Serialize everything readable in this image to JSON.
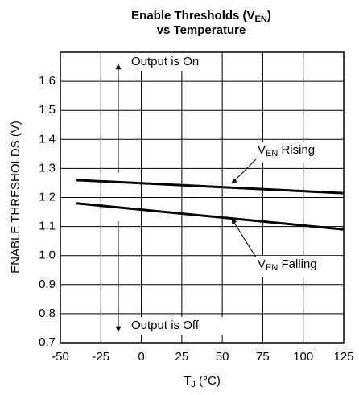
{
  "chart_data": {
    "type": "line",
    "title": {
      "main": "Enable Thresholds (V",
      "sub": "EN",
      "rest": ")"
    },
    "subtitle": "vs Temperature",
    "x_label": {
      "main": "T",
      "sub": "J",
      "rest": " (°C)"
    },
    "y_label": "ENABLE THRESHOLDS (V)",
    "x": [
      -40,
      125
    ],
    "series": [
      {
        "color": "#000000",
        "values": [
          1.26,
          1.215
        ]
      },
      {
        "color": "#000000",
        "values": [
          1.18,
          1.09
        ]
      }
    ],
    "xlim": [
      -50,
      125
    ],
    "xticks": [
      -50,
      -25,
      0,
      25,
      50,
      75,
      100,
      125
    ],
    "ylim": [
      0.7,
      1.7
    ],
    "yticks": [
      0.7,
      {
        "value": 0.8,
        "label": "0.8"
      },
      0.9,
      {
        "value": 1.0,
        "label": "1.0"
      },
      1.1,
      1.2,
      1.3,
      1.4,
      1.5,
      1.6
    ],
    "grid": true,
    "annotations": [
      {
        "text": "Output is On"
      },
      {
        "text": "Output is Off"
      },
      {
        "main": "V",
        "sub": "EN",
        "rest": " Rising"
      },
      {
        "main": "V",
        "sub": "EN",
        "rest": " Falling"
      }
    ]
  }
}
